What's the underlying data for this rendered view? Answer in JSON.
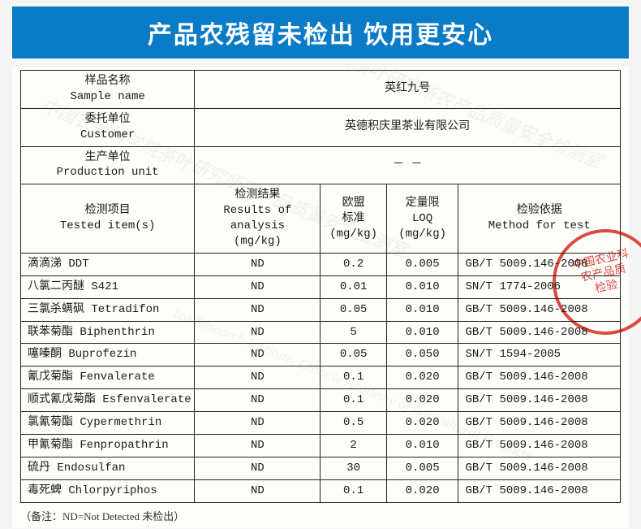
{
  "banner": "产品农残留未检出 饮用更安心",
  "labels": {
    "sample_cn": "样品名称",
    "sample_en": "Sample name",
    "customer_cn": "委托单位",
    "customer_en": "Customer",
    "producer_cn": "生产单位",
    "producer_en": "Production unit",
    "tested_cn": "检测项目",
    "tested_en": "Tested item(s)",
    "result_cn": "检测结果",
    "result_en": "Results of analysis",
    "result_unit": "(mg/kg)",
    "eu_cn": "欧盟",
    "eu_cn2": "标准",
    "eu_unit": "(mg/kg)",
    "loq_cn": "定量限",
    "loq_en": "LOQ",
    "loq_unit": "(mg/kg)",
    "method_cn": "检验依据",
    "method_en": "Method for test"
  },
  "header": {
    "sample": "英红九号",
    "customer": "英德积庆里茶业有限公司",
    "producer": "－ －"
  },
  "rows": [
    {
      "item": "滴滴涕 DDT",
      "result": "ND",
      "eu": "0.2",
      "loq": "0.005",
      "method": "GB/T 5009.146-2008"
    },
    {
      "item": "八氯二丙醚 S421",
      "result": "ND",
      "eu": "0.01",
      "loq": "0.010",
      "method": "SN/T 1774-2006"
    },
    {
      "item": "三氯杀螨砜 Tetradifon",
      "result": "ND",
      "eu": "0.05",
      "loq": "0.010",
      "method": "GB/T 5009.146-2008"
    },
    {
      "item": "联苯菊酯 Biphenthrin",
      "result": "ND",
      "eu": "5",
      "loq": "0.010",
      "method": "GB/T 5009.146-2008"
    },
    {
      "item": "噻嗪酮 Buprofezin",
      "result": "ND",
      "eu": "0.05",
      "loq": "0.050",
      "method": "SN/T 1594-2005"
    },
    {
      "item": "氰戊菊酯 Fenvalerate",
      "result": "ND",
      "eu": "0.1",
      "loq": "0.020",
      "method": "GB/T 5009.146-2008"
    },
    {
      "item": "顺式氰戊菊酯 Esfenvalerate",
      "result": "ND",
      "eu": "0.1",
      "loq": "0.020",
      "method": "GB/T 5009.146-2008"
    },
    {
      "item": "氯氰菊酯 Cypermethrin",
      "result": "ND",
      "eu": "0.5",
      "loq": "0.020",
      "method": "GB/T 5009.146-2008"
    },
    {
      "item": "甲氰菊酯 Fenpropathrin",
      "result": "ND",
      "eu": "2",
      "loq": "0.010",
      "method": "GB/T 5009.146-2008"
    },
    {
      "item": "硫丹 Endosulfan",
      "result": "ND",
      "eu": "30",
      "loq": "0.005",
      "method": "GB/T 5009.146-2008"
    },
    {
      "item": "毒死蜱 Chlorpyriphos",
      "result": "ND",
      "eu": "0.1",
      "loq": "0.020",
      "method": "GB/T 5009.146-2008"
    }
  ],
  "note": "（备注：ND=Not Detected 未检出）",
  "watermarks": {
    "cn": "中国农业科学院茶叶研究所农产品质量安全检测室",
    "en": "Tea Research Institute, Chinese Academy of Agricultural Products"
  },
  "seal_text": "中国农业科\n农产品质\n检验",
  "colors": {
    "banner_bg": "#0a7bc7",
    "banner_text": "#ffffff",
    "border": "#222222",
    "seal": "#d62a1f",
    "sheet_bg": "#fdfdfa"
  },
  "col_widths_pct": [
    29,
    21,
    11,
    12,
    27
  ]
}
